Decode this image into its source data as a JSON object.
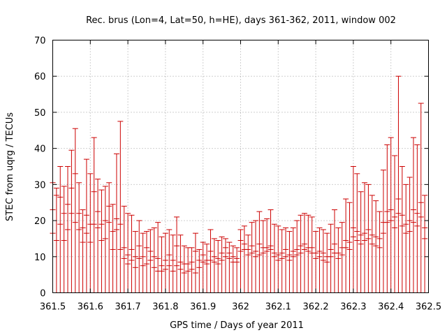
{
  "chart_data": {
    "type": "scatter",
    "title": "Rec. brus (Lon=4, Lat=50, h=HE), days 361-362, 2011, window 002",
    "xlabel": "GPS time / Days of year 2011",
    "ylabel": "STEC from uqrg / TECUs",
    "xlim": [
      361.5,
      362.5
    ],
    "ylim": [
      0,
      70
    ],
    "xticks": [
      "361.5",
      "361.6",
      "361.7",
      "361.8",
      "361.9",
      "362",
      "362.1",
      "362.2",
      "362.3",
      "362.4",
      "362.5"
    ],
    "yticks": [
      "0",
      "10",
      "20",
      "30",
      "40",
      "50",
      "60",
      "70"
    ],
    "grid": true,
    "error_bars": "from 0 to value",
    "color": "#cc0000",
    "series": [
      {
        "x": [
          361.5,
          361.51,
          361.52,
          361.53,
          361.54,
          361.55,
          361.56,
          361.57,
          361.58,
          361.59,
          361.6,
          361.61,
          361.62,
          361.63,
          361.64,
          361.65,
          361.66,
          361.67,
          361.68,
          361.69,
          361.7,
          361.71,
          361.72,
          361.73,
          361.74,
          361.75,
          361.76,
          361.77,
          361.78,
          361.79,
          361.8,
          361.81,
          361.82,
          361.83,
          361.84,
          361.85,
          361.86,
          361.87,
          361.88,
          361.89,
          361.9,
          361.91,
          361.92,
          361.93,
          361.94,
          361.95,
          361.96,
          361.97,
          361.98,
          361.99,
          362.0,
          362.01,
          362.02,
          362.03,
          362.04,
          362.05,
          362.06,
          362.07,
          362.08,
          362.09,
          362.1,
          362.11,
          362.12,
          362.13,
          362.14,
          362.15,
          362.16,
          362.17,
          362.18,
          362.19,
          362.2,
          362.21,
          362.22,
          362.23,
          362.24,
          362.25,
          362.26,
          362.27,
          362.28,
          362.29,
          362.3,
          362.31,
          362.32,
          362.33,
          362.34,
          362.35,
          362.36,
          362.37,
          362.38,
          362.39,
          362.4,
          362.41,
          362.42,
          362.43,
          362.44,
          362.45,
          362.46,
          362.47,
          362.48,
          362.49
        ],
        "y": [
          30.5,
          29.0,
          35.0,
          29.5,
          35.0,
          39.5,
          45.5,
          30.5,
          23.0,
          37.0,
          33.0,
          43.0,
          31.5,
          28.5,
          29.5,
          30.5,
          24.5,
          38.5,
          47.5,
          24.0,
          22.0,
          21.5,
          17.0,
          20.0,
          16.5,
          17.0,
          17.5,
          18.0,
          19.5,
          15.5,
          16.5,
          17.5,
          16.0,
          21.0,
          16.0,
          13.0,
          12.5,
          12.5,
          16.5,
          12.0,
          14.0,
          13.5,
          17.5,
          15.0,
          14.5,
          15.5,
          15.0,
          14.0,
          13.0,
          12.5,
          17.5,
          18.5,
          16.0,
          19.5,
          20.0,
          22.5,
          20.0,
          20.5,
          23.0,
          19.0,
          18.5,
          17.5,
          18.0,
          17.0,
          18.0,
          20.0,
          21.5,
          22.0,
          21.5,
          21.0,
          17.0,
          18.0,
          17.5,
          16.5,
          19.0,
          23.0,
          18.0,
          19.5,
          26.0,
          25.0,
          35.0,
          33.0,
          28.0,
          30.5,
          30.0,
          27.0,
          25.5,
          22.5,
          34.0,
          41.0,
          43.0,
          38.0,
          60.0,
          35.0,
          30.0,
          32.0,
          43.0,
          41.0,
          52.5,
          27.0
        ],
        "y_inner": [
          [
            16.5,
            23.0
          ],
          [
            14.5,
            27.0
          ],
          [
            19.0,
            26.5
          ],
          [
            14.5,
            22.0
          ],
          [
            17.5,
            24.5
          ],
          [
            22.0,
            29.0
          ],
          [
            19.5,
            33.0
          ],
          [
            17.5,
            22.0
          ],
          [
            14.0,
            18.0
          ],
          [
            16.5,
            21.5
          ],
          [
            14.0,
            19.0
          ],
          [
            19.0,
            28.0
          ],
          [
            18.0,
            22.5
          ],
          [
            14.5,
            19.0
          ],
          [
            15.0,
            20.0
          ],
          [
            19.5,
            24.0
          ],
          [
            12.0,
            17.0
          ],
          [
            17.5,
            20.5
          ],
          [
            12.0,
            19.0
          ],
          [
            9.5,
            12.5
          ],
          [
            8.0,
            10.5
          ],
          [
            9.0,
            12.0
          ],
          [
            7.0,
            10.0
          ],
          [
            9.5,
            13.0
          ],
          [
            7.5,
            10.0
          ],
          [
            8.0,
            12.5
          ],
          [
            9.0,
            11.5
          ],
          [
            7.0,
            10.0
          ],
          [
            6.0,
            9.5
          ],
          [
            6.0,
            7.5
          ],
          [
            6.5,
            9.0
          ],
          [
            7.5,
            10.5
          ],
          [
            6.0,
            9.0
          ],
          [
            7.5,
            13.0
          ],
          [
            6.5,
            8.5
          ],
          [
            5.5,
            8.0
          ],
          [
            6.0,
            8.0
          ],
          [
            6.5,
            8.5
          ],
          [
            5.5,
            11.5
          ],
          [
            7.0,
            9.0
          ],
          [
            8.5,
            10.5
          ],
          [
            8.0,
            9.0
          ],
          [
            9.0,
            11.5
          ],
          [
            8.5,
            10.0
          ],
          [
            8.0,
            9.5
          ],
          [
            9.0,
            11.0
          ],
          [
            10.0,
            12.5
          ],
          [
            9.5,
            11.0
          ],
          [
            8.5,
            10.0
          ],
          [
            8.5,
            9.5
          ],
          [
            11.5,
            14.5
          ],
          [
            12.0,
            13.5
          ],
          [
            10.5,
            12.0
          ],
          [
            11.0,
            13.0
          ],
          [
            10.0,
            11.5
          ],
          [
            10.5,
            13.5
          ],
          [
            11.0,
            12.5
          ],
          [
            11.5,
            12.5
          ],
          [
            12.0,
            13.0
          ],
          [
            10.0,
            11.0
          ],
          [
            9.0,
            10.5
          ],
          [
            9.5,
            11.0
          ],
          [
            10.0,
            12.0
          ],
          [
            9.0,
            10.5
          ],
          [
            10.0,
            11.5
          ],
          [
            10.5,
            12.0
          ],
          [
            11.0,
            13.0
          ],
          [
            12.0,
            13.5
          ],
          [
            11.5,
            12.5
          ],
          [
            11.0,
            12.5
          ],
          [
            9.5,
            11.0
          ],
          [
            10.0,
            11.5
          ],
          [
            9.0,
            11.0
          ],
          [
            8.5,
            10.0
          ],
          [
            10.0,
            12.0
          ],
          [
            11.0,
            13.5
          ],
          [
            9.5,
            11.0
          ],
          [
            10.5,
            12.5
          ],
          [
            12.5,
            14.5
          ],
          [
            12.0,
            14.0
          ],
          [
            15.5,
            18.0
          ],
          [
            14.5,
            17.0
          ],
          [
            13.5,
            16.0
          ],
          [
            14.5,
            16.5
          ],
          [
            15.0,
            17.5
          ],
          [
            13.5,
            16.0
          ],
          [
            13.0,
            15.5
          ],
          [
            12.5,
            15.0
          ],
          [
            16.5,
            19.5
          ],
          [
            19.5,
            22.5
          ],
          [
            20.0,
            23.0
          ],
          [
            18.0,
            21.0
          ],
          [
            22.0,
            26.0
          ],
          [
            18.5,
            21.5
          ],
          [
            16.5,
            19.0
          ],
          [
            17.0,
            20.0
          ],
          [
            19.5,
            23.0
          ],
          [
            18.5,
            22.0
          ],
          [
            21.0,
            25.0
          ],
          [
            15.0,
            18.0
          ]
        ]
      }
    ]
  }
}
